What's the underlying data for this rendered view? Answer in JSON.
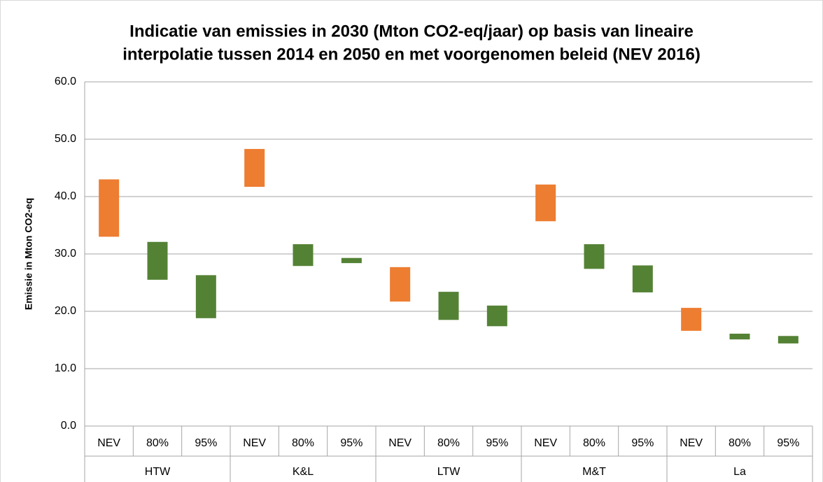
{
  "chart_data": {
    "type": "floating_bar",
    "title": [
      "Indicatie van emissies in 2030 (Mton CO2-eq/jaar) op basis van lineaire",
      "interpolatie tussen 2014 en 2050 en met voorgenomen beleid (NEV 2016)"
    ],
    "y_label": "Emissie in Mton CO2-eq",
    "groups": [
      "HTW",
      "K&L",
      "LTW",
      "M&T",
      "La"
    ],
    "categories": [
      "NEV",
      "80%",
      "95%",
      "NEV",
      "80%",
      "95%",
      "NEV",
      "80%",
      "95%",
      "NEV",
      "80%",
      "95%",
      "NEV",
      "80%",
      "95%"
    ],
    "low": [
      33.0,
      25.5,
      18.8,
      41.7,
      27.9,
      28.4,
      21.7,
      18.5,
      17.4,
      35.7,
      27.4,
      23.3,
      16.6,
      15.1,
      14.4
    ],
    "high": [
      43.0,
      32.1,
      26.3,
      48.3,
      31.7,
      29.3,
      27.7,
      23.4,
      21.0,
      42.1,
      31.7,
      28.0,
      20.6,
      16.1,
      15.7
    ],
    "colors": [
      "#ed7d31",
      "#548235",
      "#548235",
      "#ed7d31",
      "#548235",
      "#548235",
      "#ed7d31",
      "#548235",
      "#548235",
      "#ed7d31",
      "#548235",
      "#548235",
      "#ed7d31",
      "#548235",
      "#548235"
    ],
    "ylim": [
      0,
      60
    ],
    "yticks": [
      {
        "value": 0,
        "label": "0.0"
      },
      {
        "value": 10,
        "label": "10.0"
      },
      {
        "value": 20,
        "label": "20.0"
      },
      {
        "value": 30,
        "label": "30.0"
      },
      {
        "value": 40,
        "label": "40.0"
      },
      {
        "value": 50,
        "label": "50.0"
      },
      {
        "value": 60,
        "label": "60.0"
      }
    ],
    "grid": true
  }
}
